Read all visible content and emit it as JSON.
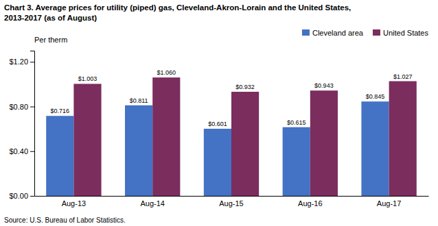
{
  "chart_data": {
    "type": "bar",
    "title": "Chart 3. Average prices for utility (piped) gas, Cleveland-Akron-Lorain and the United States,",
    "subtitle": "2013-2017  (as of August)",
    "ylabel": "Per therm",
    "annotations": [
      "Source: U.S. Bureau of Labor Statistics."
    ],
    "categories": [
      "Aug-13",
      "Aug-14",
      "Aug-15",
      "Aug-16",
      "Aug-17"
    ],
    "series": [
      {
        "name": "Cleveland area",
        "color": "#4472C4",
        "values": [
          0.716,
          0.811,
          0.601,
          0.615,
          0.845
        ],
        "value_labels": [
          "$0.716",
          "$0.811",
          "$0.601",
          "$0.615",
          "$0.845"
        ]
      },
      {
        "name": "United States",
        "color": "#7B2D5E",
        "values": [
          1.003,
          1.06,
          0.932,
          0.943,
          1.027
        ],
        "value_labels": [
          "$1.003",
          "$1.060",
          "$0.932",
          "$0.943",
          "$1.027"
        ]
      }
    ],
    "ylim": [
      0,
      1.3
    ],
    "yticks": [
      {
        "value": 0.0,
        "label": "$0.00"
      },
      {
        "value": 0.4,
        "label": "$0.40"
      },
      {
        "value": 0.8,
        "label": "$0.80"
      },
      {
        "value": 1.2,
        "label": "$1.20"
      }
    ],
    "data_labels": true,
    "legend": "upper right",
    "grid": false
  }
}
